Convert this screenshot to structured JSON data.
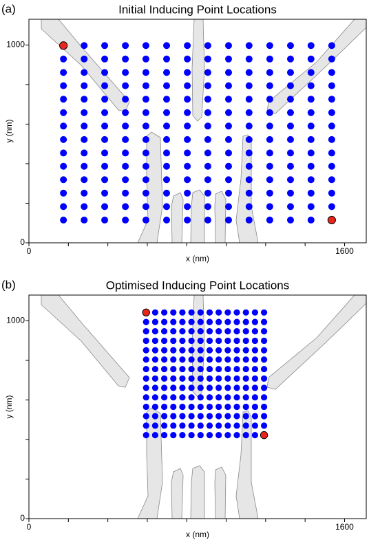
{
  "chart_data": [
    {
      "type": "scatter",
      "panel_label": "(a)",
      "title": "Initial Inducing Point Locations",
      "xlabel": "x (nm)",
      "ylabel": "y (nm)",
      "xlim": [
        0,
        1710
      ],
      "ylim": [
        0,
        1130
      ],
      "xticks": [
        0,
        1600
      ],
      "xminor_ticks": [
        200,
        400,
        600,
        800,
        1000,
        1200,
        1400
      ],
      "yticks": [
        0,
        1000
      ],
      "yminor_ticks": [
        200,
        400,
        600,
        800
      ],
      "color": "#0000ff",
      "grid_x": [
        175,
        280,
        384,
        489,
        593,
        698,
        803,
        907,
        1012,
        1116,
        1221,
        1326,
        1430,
        1535
      ],
      "grid_y": [
        997,
        929,
        861,
        794,
        726,
        658,
        590,
        522,
        454,
        387,
        319,
        251,
        183,
        115
      ],
      "highlight": {
        "color": "#e8261c",
        "x": [
          175,
          1535
        ],
        "y": [
          997,
          115
        ]
      }
    },
    {
      "type": "scatter",
      "panel_label": "(b)",
      "title": "Optimised Inducing Point Locations",
      "xlabel": "x (nm)",
      "ylabel": "y (nm)",
      "xlim": [
        0,
        1710
      ],
      "ylim": [
        0,
        1130
      ],
      "xticks": [
        0,
        1600
      ],
      "xminor_ticks": [
        200,
        400,
        600,
        800,
        1000,
        1200,
        1400
      ],
      "yticks": [
        0,
        1000
      ],
      "yminor_ticks": [
        200,
        400,
        600,
        800
      ],
      "color": "#0000ff",
      "grid_x": [
        594,
        640,
        686,
        732,
        778,
        824,
        870,
        916,
        962,
        1008,
        1054,
        1100,
        1146,
        1192
      ],
      "grid_y": [
        1042,
        994,
        947,
        899,
        851,
        804,
        756,
        708,
        661,
        613,
        565,
        518,
        470,
        422
      ],
      "highlight": {
        "color": "#e8261c",
        "x": [
          594,
          1192
        ],
        "y": [
          1042,
          422
        ]
      }
    }
  ]
}
